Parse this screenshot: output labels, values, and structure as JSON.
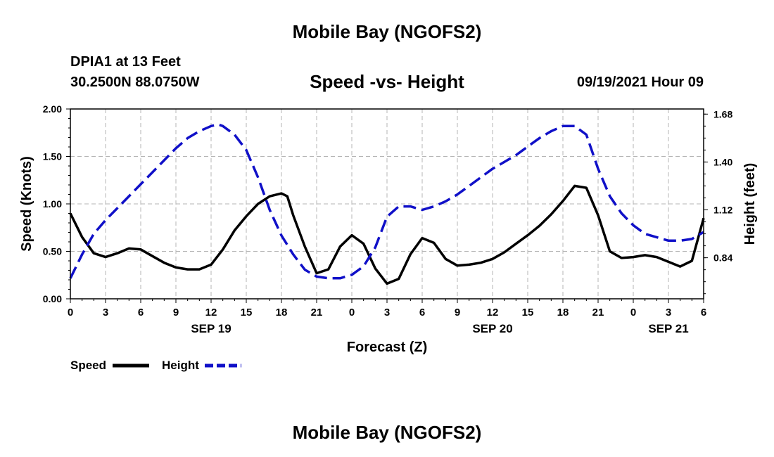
{
  "header": {
    "title": "Mobile Bay (NGOFS2)",
    "station": "DPIA1 at 13 Feet",
    "coords": "30.2500N  88.0750W",
    "plot_title": "Speed -vs- Height",
    "datetime": "09/19/2021 Hour 09"
  },
  "footer": {
    "title": "Mobile Bay (NGOFS2)"
  },
  "legend": {
    "speed": "Speed",
    "height": "Height"
  },
  "colors": {
    "speed": "#000000",
    "height": "#1010c8",
    "grid": "#b4b4b4"
  },
  "chart_data": {
    "type": "line",
    "title": "Speed -vs- Height",
    "xlabel": "Forecast (Z)",
    "ylabel": "Speed (Knots)",
    "y2label": "Height (feet)",
    "xlim": [
      0,
      54
    ],
    "ylim": [
      0,
      2
    ],
    "y2lim": [
      0.6,
      1.71
    ],
    "x_ticks": [
      "0",
      "3",
      "6",
      "9",
      "12",
      "15",
      "18",
      "21",
      "0",
      "3",
      "6",
      "9",
      "12",
      "15",
      "18",
      "21",
      "0",
      "3",
      "6"
    ],
    "y_ticks": [
      "0.00",
      "0.50",
      "1.00",
      "1.50",
      "2.00"
    ],
    "y2_ticks": [
      "0.84",
      "1.12",
      "1.40",
      "1.68"
    ],
    "date_labels": [
      {
        "text": "SEP 19",
        "x": 12
      },
      {
        "text": "SEP 20",
        "x": 36
      },
      {
        "text": "SEP 21",
        "x": 51
      }
    ],
    "grid": true,
    "legend_position": "bottom-left",
    "series": [
      {
        "name": "Speed",
        "axis": "left",
        "style": "solid",
        "x": [
          0,
          1,
          2,
          3,
          4,
          5,
          6,
          7,
          8,
          9,
          10,
          11,
          12,
          13,
          14,
          15,
          16,
          17,
          18,
          18.5,
          19,
          20,
          21,
          22,
          23,
          24,
          25,
          26,
          27,
          28,
          29,
          30,
          31,
          32,
          33,
          34,
          35,
          36,
          37,
          38,
          39,
          40,
          41,
          42,
          43,
          44,
          45,
          46,
          47,
          48,
          49,
          50,
          51,
          52,
          53,
          54
        ],
        "values": [
          0.9,
          0.65,
          0.48,
          0.44,
          0.48,
          0.53,
          0.52,
          0.45,
          0.38,
          0.33,
          0.31,
          0.31,
          0.36,
          0.52,
          0.72,
          0.87,
          1.0,
          1.08,
          1.11,
          1.08,
          0.88,
          0.55,
          0.27,
          0.31,
          0.55,
          0.67,
          0.58,
          0.32,
          0.16,
          0.21,
          0.47,
          0.64,
          0.59,
          0.42,
          0.35,
          0.36,
          0.38,
          0.42,
          0.49,
          0.58,
          0.67,
          0.77,
          0.89,
          1.03,
          1.19,
          1.17,
          0.88,
          0.5,
          0.43,
          0.44,
          0.46,
          0.44,
          0.39,
          0.34,
          0.4,
          0.85
        ]
      },
      {
        "name": "Height",
        "axis": "right",
        "style": "dashed",
        "x": [
          0,
          1,
          2,
          3,
          4,
          5,
          6,
          7,
          8,
          9,
          10,
          11,
          12,
          12.6,
          13,
          14,
          15,
          16,
          17,
          18,
          19,
          20,
          21,
          22,
          23,
          24,
          25,
          26,
          27,
          28,
          29,
          30,
          31,
          32,
          33,
          34,
          35,
          36,
          37,
          38,
          39,
          40,
          41,
          42,
          43,
          44,
          45,
          46,
          47,
          48,
          49,
          50,
          51,
          52,
          53,
          54
        ],
        "values": [
          0.72,
          0.86,
          0.98,
          1.06,
          1.13,
          1.2,
          1.27,
          1.34,
          1.41,
          1.48,
          1.54,
          1.58,
          1.61,
          1.62,
          1.61,
          1.56,
          1.47,
          1.31,
          1.12,
          0.97,
          0.86,
          0.77,
          0.73,
          0.72,
          0.72,
          0.74,
          0.79,
          0.9,
          1.08,
          1.14,
          1.14,
          1.12,
          1.14,
          1.17,
          1.21,
          1.26,
          1.31,
          1.36,
          1.4,
          1.44,
          1.49,
          1.54,
          1.58,
          1.61,
          1.61,
          1.56,
          1.36,
          1.2,
          1.1,
          1.03,
          0.98,
          0.96,
          0.94,
          0.94,
          0.95,
          0.99
        ]
      }
    ]
  }
}
